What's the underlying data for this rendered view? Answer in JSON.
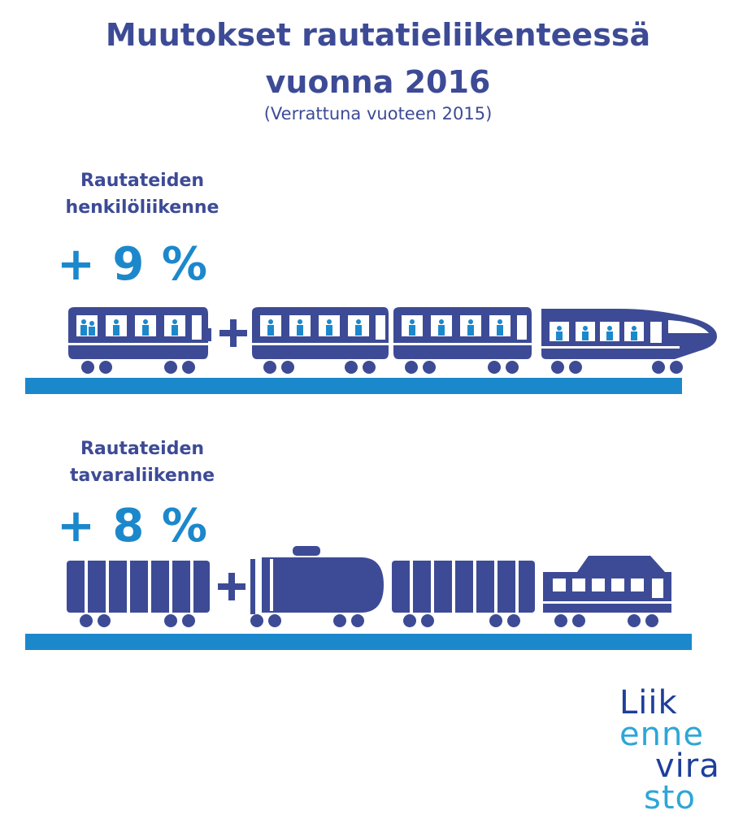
{
  "title_line1": "Muutokset rautatieliikenteessä",
  "title_line2": "vuonna 2016",
  "subtitle": "(Verrattuna vuoteen 2015)",
  "passenger": {
    "label_line1": "Rautateiden",
    "label_line2": "henkilöliikenne",
    "change": "+ 9 %"
  },
  "freight": {
    "label_line1": "Rautateiden",
    "label_line2": "tavaraliikenne",
    "change": "+ 8 %"
  },
  "logo": {
    "line1": "Liik",
    "line2": "enne",
    "line3": "vira",
    "line4": "sto"
  },
  "colors": {
    "navy": "#3d4b96",
    "blue": "#1c88cc",
    "logo_dark": "#1e3f9a",
    "logo_light": "#2ea6d6"
  }
}
